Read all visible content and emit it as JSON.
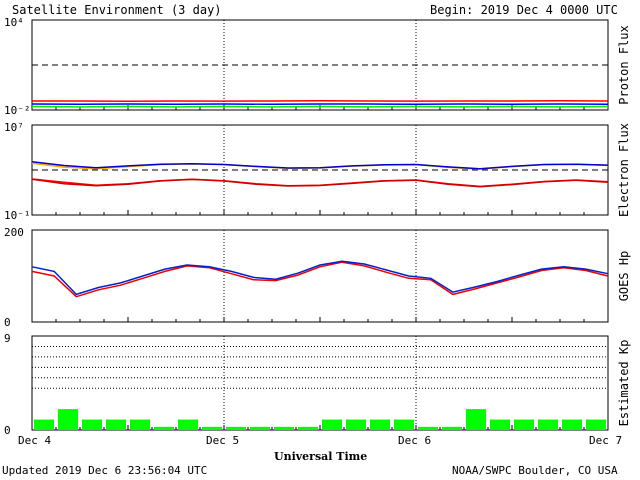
{
  "header": {
    "title": "Satellite Environment (3 day)",
    "begin": "Begin:  2019 Dec 4 0000 UTC"
  },
  "footer": {
    "updated": "Updated 2019 Dec  6 23:56:04 UTC",
    "credit": "NOAA/SWPC Boulder, CO USA"
  },
  "x_axis": {
    "label": "Universal Time",
    "ticks": [
      "Dec 4",
      "Dec 5",
      "Dec 6",
      "Dec 7"
    ]
  },
  "colors": {
    "proton_high": "#ff0000",
    "proton_mid": "#0000ff",
    "proton_low": "#00ee00",
    "electron_a": "#ff0000",
    "electron_b": "#0000cc",
    "electron_c": "#ffa500",
    "electron_d": "#cc0000",
    "hp_red": "#ee0000",
    "hp_blue": "#0022cc",
    "kp_bar": "#00ff00",
    "threshold": "#000000"
  },
  "chart_data": [
    {
      "type": "line",
      "ylabel": "Proton Flux",
      "yscale": "log",
      "ylim": [
        0.01,
        10000
      ],
      "yticks": [
        "10⁴",
        "10⁻²"
      ],
      "x_range_days": [
        0,
        3
      ],
      "threshold": 10,
      "series": [
        {
          "values": [
            0.04,
            0.04,
            0.038,
            0.04,
            0.039,
            0.04,
            0.041,
            0.04,
            0.039,
            0.04,
            0.04,
            0.041,
            0.04
          ]
        },
        {
          "values": [
            0.025,
            0.024,
            0.025,
            0.024,
            0.025,
            0.024,
            0.025,
            0.025,
            0.024,
            0.025,
            0.024,
            0.025,
            0.024
          ]
        },
        {
          "values": [
            0.017,
            0.016,
            0.017,
            0.016,
            0.017,
            0.016,
            0.017,
            0.016,
            0.017,
            0.016,
            0.017,
            0.016,
            0.017
          ]
        }
      ]
    },
    {
      "type": "line",
      "ylabel": "Electron Flux",
      "yscale": "log",
      "ylim": [
        0.1,
        10000000
      ],
      "yticks": [
        "10⁷",
        "10⁻¹"
      ],
      "x_range_days": [
        0,
        3
      ],
      "threshold": 1000,
      "series": [
        {
          "values": [
            4000,
            1800,
            1300,
            2000,
            3000,
            3500,
            3000,
            2000,
            1400,
            1500,
            2200,
            2800,
            3000,
            1700,
            1200,
            2000,
            3000,
            3200,
            2500
          ]
        },
        {
          "values": [
            5500,
            2500,
            1600,
            2300,
            3200,
            3600,
            3100,
            2100,
            1500,
            1600,
            2300,
            2900,
            3100,
            1900,
            1300,
            2100,
            3100,
            3300,
            2700
          ]
        },
        {
          "values": [
            160,
            80,
            45,
            60,
            110,
            150,
            110,
            60,
            40,
            45,
            70,
            110,
            130,
            60,
            35,
            55,
            95,
            130,
            90
          ]
        },
        {
          "values": [
            150,
            60,
            40,
            55,
            105,
            145,
            105,
            55,
            38,
            42,
            65,
            105,
            125,
            55,
            32,
            50,
            90,
            125,
            80
          ]
        }
      ]
    },
    {
      "type": "line",
      "ylabel": "GOES Hp",
      "ylim": [
        0,
        200
      ],
      "yticks": [
        "200",
        "0"
      ],
      "x_range_days": [
        0,
        3
      ],
      "series": [
        {
          "values": [
            110,
            100,
            55,
            70,
            80,
            95,
            110,
            122,
            118,
            105,
            92,
            90,
            102,
            120,
            130,
            122,
            108,
            95,
            92,
            60,
            72,
            85,
            98,
            112,
            118,
            112,
            100
          ]
        },
        {
          "values": [
            120,
            110,
            60,
            75,
            85,
            100,
            115,
            124,
            120,
            110,
            97,
            93,
            106,
            124,
            132,
            126,
            113,
            100,
            95,
            65,
            76,
            88,
            102,
            115,
            120,
            115,
            105
          ]
        }
      ]
    },
    {
      "type": "bar",
      "ylabel": "Estimated Kp",
      "ylim": [
        0,
        9
      ],
      "yticks": [
        "9",
        "0"
      ],
      "gridlines": [
        4,
        5,
        6,
        7,
        8,
        9
      ],
      "values": [
        1,
        2,
        1,
        1,
        1,
        0.3,
        1,
        0.3,
        0.3,
        0.3,
        0.3,
        0.3,
        1,
        1,
        1,
        1,
        0.3,
        0.3,
        2,
        1,
        1,
        1,
        1,
        1
      ]
    }
  ]
}
